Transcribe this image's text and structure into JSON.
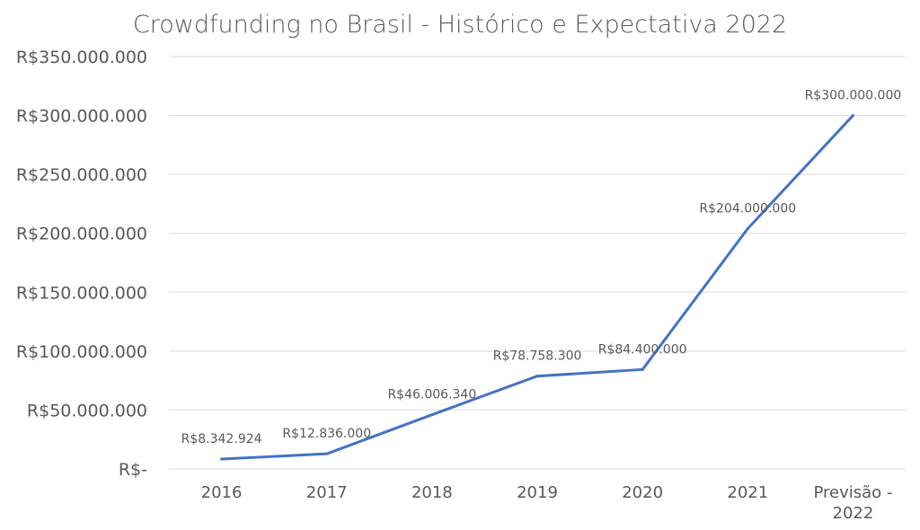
{
  "chart_data": {
    "type": "line",
    "title": "Crowdfunding no Brasil - Histórico e Expectativa 2022",
    "categories": [
      "2016",
      "2017",
      "2018",
      "2019",
      "2020",
      "2021",
      "Previsão - 2022"
    ],
    "series": [
      {
        "values": [
          8342924,
          12836000,
          46006340,
          78758300,
          84400000,
          204000000,
          300000000
        ],
        "labels": [
          "R$8.342.924",
          "R$12.836.000",
          "R$46.006.340",
          "R$78.758.300",
          "R$84.400.000",
          "R$204.000.000",
          "R$300.000.000"
        ],
        "color": "#4472C4"
      }
    ],
    "ylim": [
      0,
      350000000
    ],
    "yticks": [
      0,
      50000000,
      100000000,
      150000000,
      200000000,
      250000000,
      300000000,
      350000000
    ],
    "ytick_labels": [
      "R$-",
      "R$50.000.000",
      "R$100.000.000",
      "R$150.000.000",
      "R$200.000.000",
      "R$250.000.000",
      "R$300.000.000",
      "R$350.000.000"
    ],
    "xlabel": "",
    "ylabel": "",
    "grid": true,
    "legend": "none"
  }
}
